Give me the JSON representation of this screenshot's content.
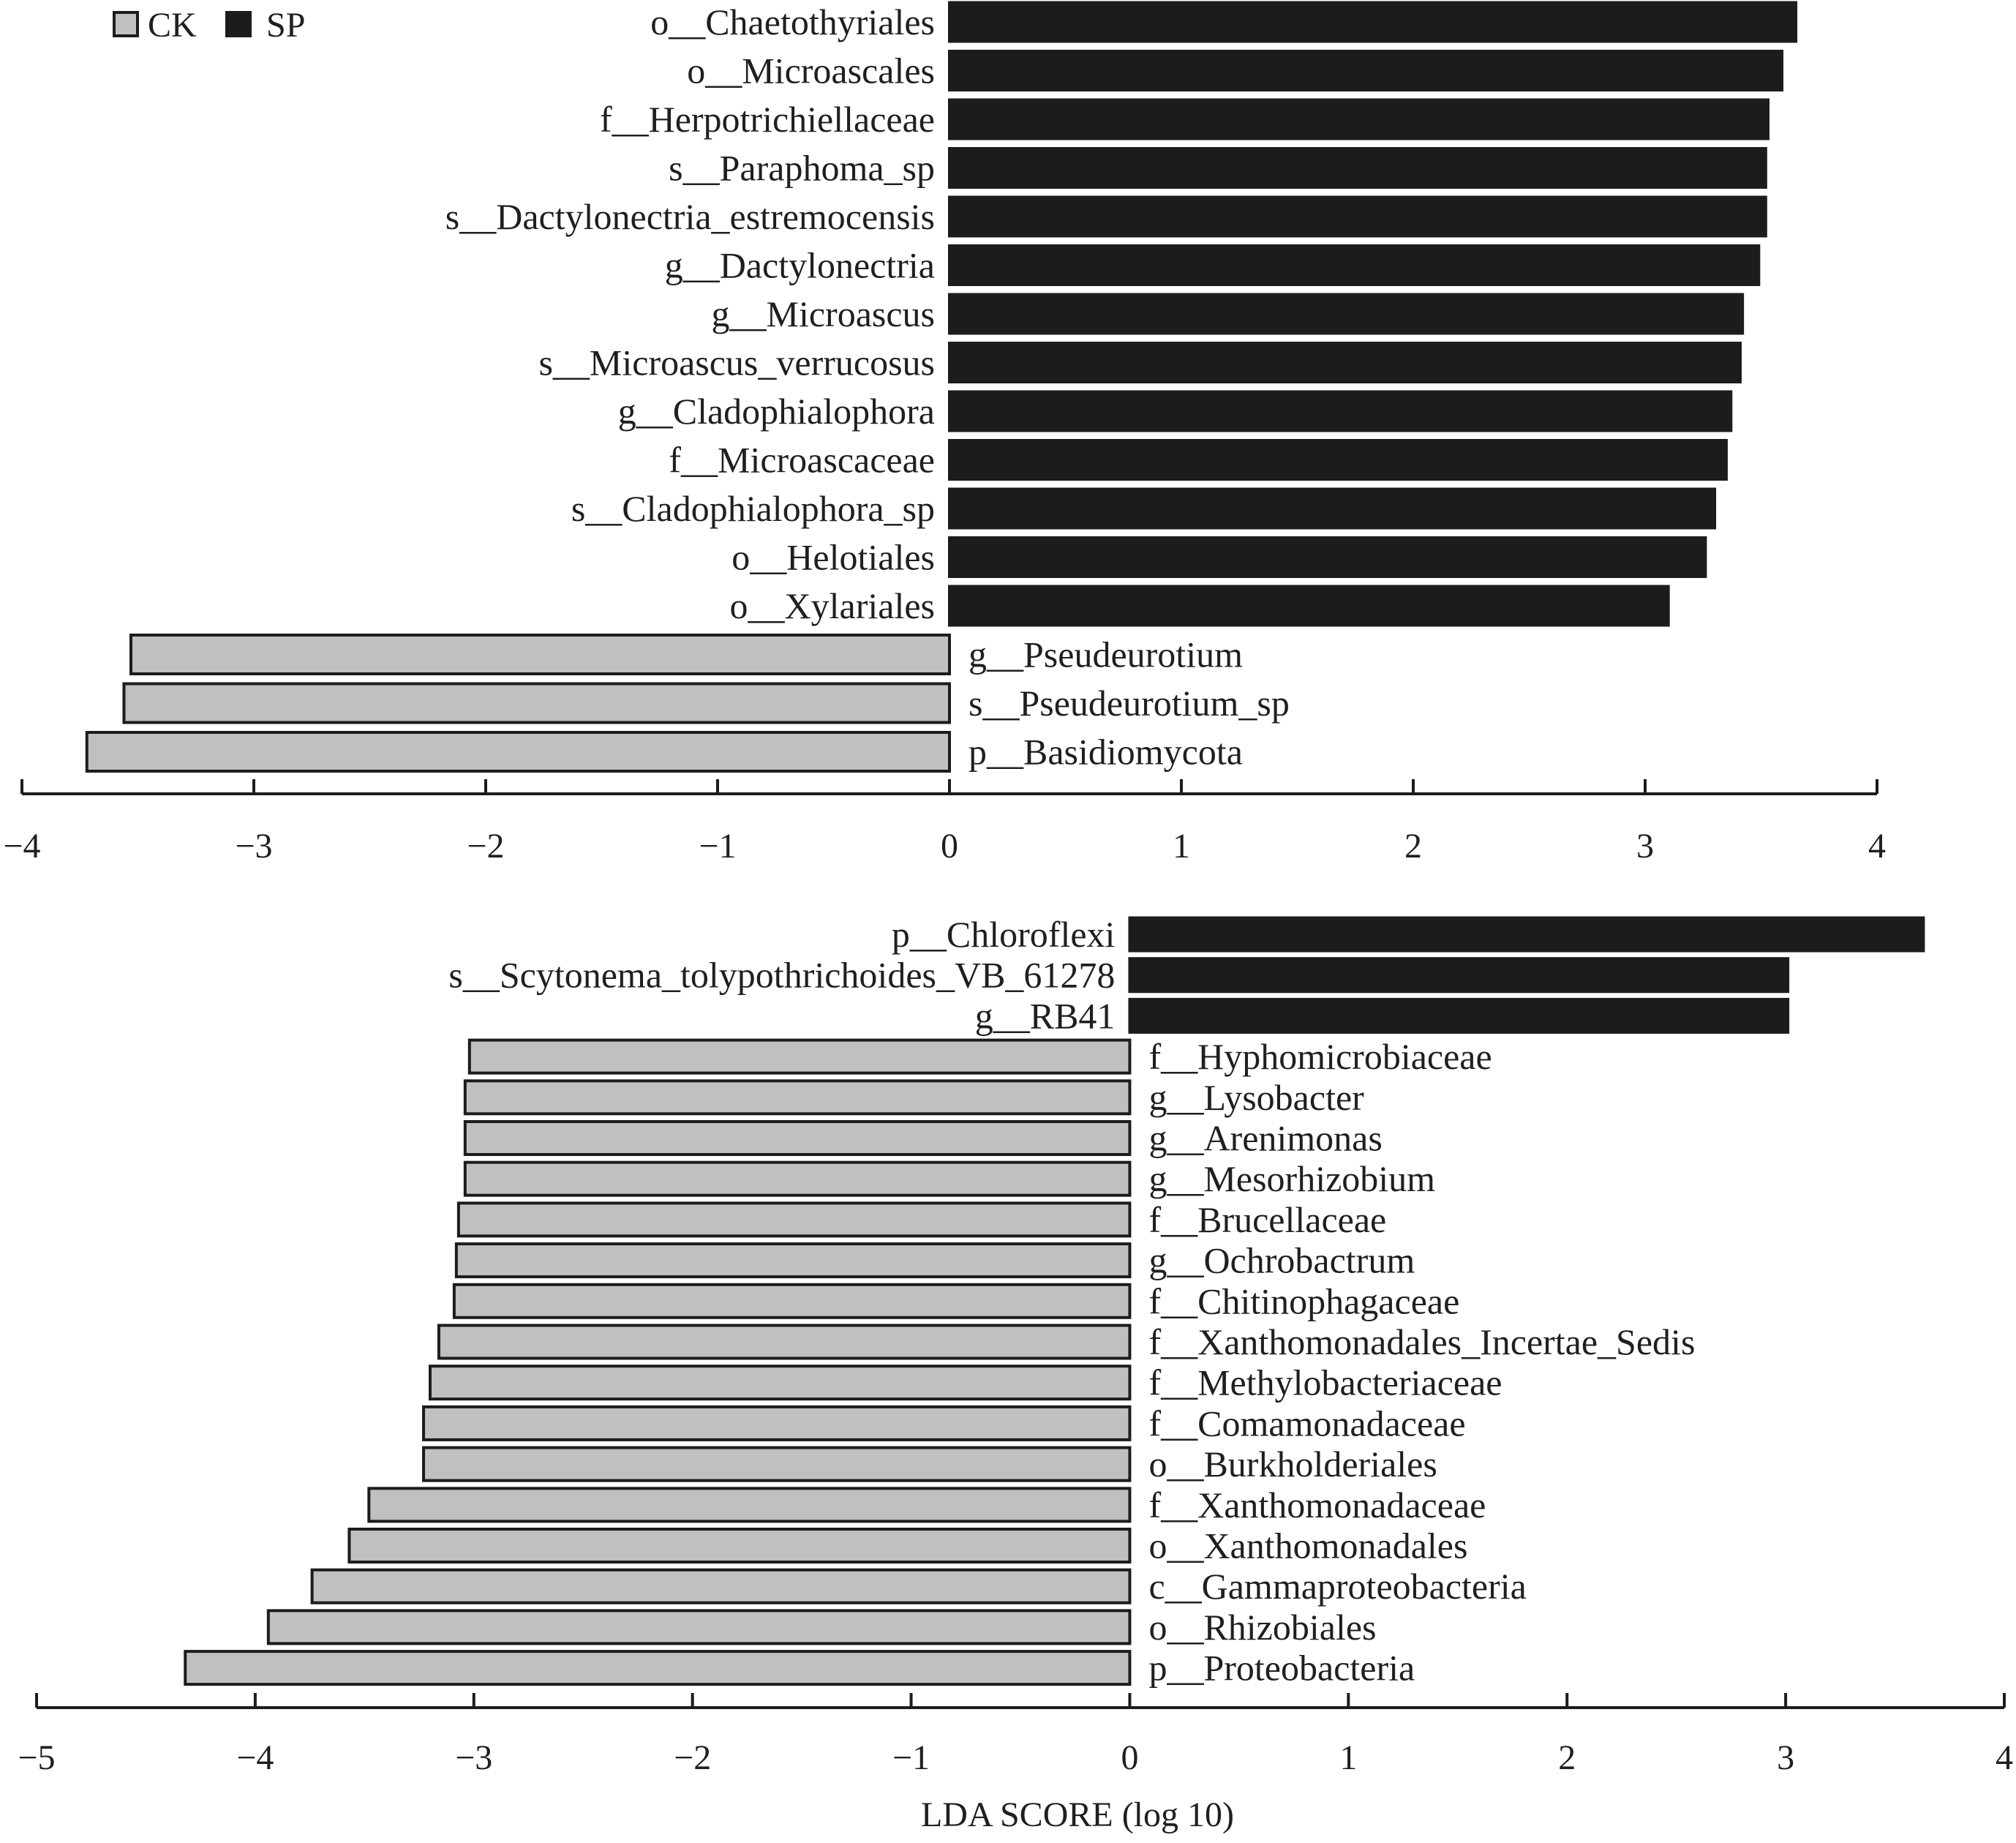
{
  "legend": {
    "items": [
      {
        "label": "CK",
        "color": "#c0c0c0"
      },
      {
        "label": "SP",
        "color": "#1c1c1c"
      }
    ]
  },
  "colors": {
    "CK": "#c0c0c0",
    "SP": "#1c1c1c",
    "axis": "#1c1c1c",
    "outline": "#1c1c1c"
  },
  "chart_data": [
    {
      "type": "bar",
      "orientation": "horizontal",
      "xlabel": "",
      "xlim": [
        -4,
        4
      ],
      "xticks": [
        -4,
        -3,
        -2,
        -1,
        0,
        1,
        2,
        3,
        4
      ],
      "tick_labels": [
        "−4",
        "−3",
        "−2",
        "−1",
        "0",
        "1",
        "2",
        "3",
        "4"
      ],
      "bars": [
        {
          "label": "o__Chaetothyriales",
          "value": 3.65,
          "group": "SP"
        },
        {
          "label": "o__Microascales",
          "value": 3.59,
          "group": "SP"
        },
        {
          "label": "f__Herpotrichiellaceae",
          "value": 3.53,
          "group": "SP"
        },
        {
          "label": "s__Paraphoma_sp",
          "value": 3.52,
          "group": "SP"
        },
        {
          "label": "s__Dactylonectria_estremocensis",
          "value": 3.52,
          "group": "SP"
        },
        {
          "label": "g__Dactylonectria",
          "value": 3.49,
          "group": "SP"
        },
        {
          "label": "g__Microascus",
          "value": 3.42,
          "group": "SP"
        },
        {
          "label": "s__Microascus_verrucosus",
          "value": 3.41,
          "group": "SP"
        },
        {
          "label": "g__Cladophialophora",
          "value": 3.37,
          "group": "SP"
        },
        {
          "label": "f__Microascaceae",
          "value": 3.35,
          "group": "SP"
        },
        {
          "label": "s__Cladophialophora_sp",
          "value": 3.3,
          "group": "SP"
        },
        {
          "label": "o__Helotiales",
          "value": 3.26,
          "group": "SP"
        },
        {
          "label": "o__Xylariales",
          "value": 3.1,
          "group": "SP"
        },
        {
          "label": "g__Pseudeurotium",
          "value": -3.53,
          "group": "CK"
        },
        {
          "label": "s__Pseudeurotium_sp",
          "value": -3.56,
          "group": "CK"
        },
        {
          "label": "p__Basidiomycota",
          "value": -3.72,
          "group": "CK"
        }
      ]
    },
    {
      "type": "bar",
      "orientation": "horizontal",
      "xlabel": "LDA SCORE (log 10)",
      "xlim": [
        -5,
        4
      ],
      "xticks": [
        -5,
        -4,
        -3,
        -2,
        -1,
        0,
        1,
        2,
        3,
        4
      ],
      "tick_labels": [
        "−5",
        "−4",
        "−3",
        "−2",
        "−1",
        "0",
        "1",
        "2",
        "3",
        "4"
      ],
      "bars": [
        {
          "label": "p__Chloroflexi",
          "value": 3.63,
          "group": "SP"
        },
        {
          "label": "s__Scytonema_tolypothrichoides_VB_61278",
          "value": 3.01,
          "group": "SP"
        },
        {
          "label": "g__RB41",
          "value": 3.01,
          "group": "SP"
        },
        {
          "label": "f__Hyphomicrobiaceae",
          "value": -3.02,
          "group": "CK"
        },
        {
          "label": "g__Lysobacter",
          "value": -3.04,
          "group": "CK"
        },
        {
          "label": "g__Arenimonas",
          "value": -3.04,
          "group": "CK"
        },
        {
          "label": "g__Mesorhizobium",
          "value": -3.04,
          "group": "CK"
        },
        {
          "label": "f__Brucellaceae",
          "value": -3.07,
          "group": "CK"
        },
        {
          "label": "g__Ochrobactrum",
          "value": -3.08,
          "group": "CK"
        },
        {
          "label": "f__Chitinophagaceae",
          "value": -3.09,
          "group": "CK"
        },
        {
          "label": "f__Xanthomonadales_Incertae_Sedis",
          "value": -3.16,
          "group": "CK"
        },
        {
          "label": "f__Methylobacteriaceae",
          "value": -3.2,
          "group": "CK"
        },
        {
          "label": "f__Comamonadaceae",
          "value": -3.23,
          "group": "CK"
        },
        {
          "label": "o__Burkholderiales",
          "value": -3.23,
          "group": "CK"
        },
        {
          "label": "f__Xanthomonadaceae",
          "value": -3.48,
          "group": "CK"
        },
        {
          "label": "o__Xanthomonadales",
          "value": -3.57,
          "group": "CK"
        },
        {
          "label": "c__Gammaproteobacteria",
          "value": -3.74,
          "group": "CK"
        },
        {
          "label": "o__Rhizobiales",
          "value": -3.94,
          "group": "CK"
        },
        {
          "label": "p__Proteobacteria",
          "value": -4.32,
          "group": "CK"
        }
      ]
    }
  ]
}
